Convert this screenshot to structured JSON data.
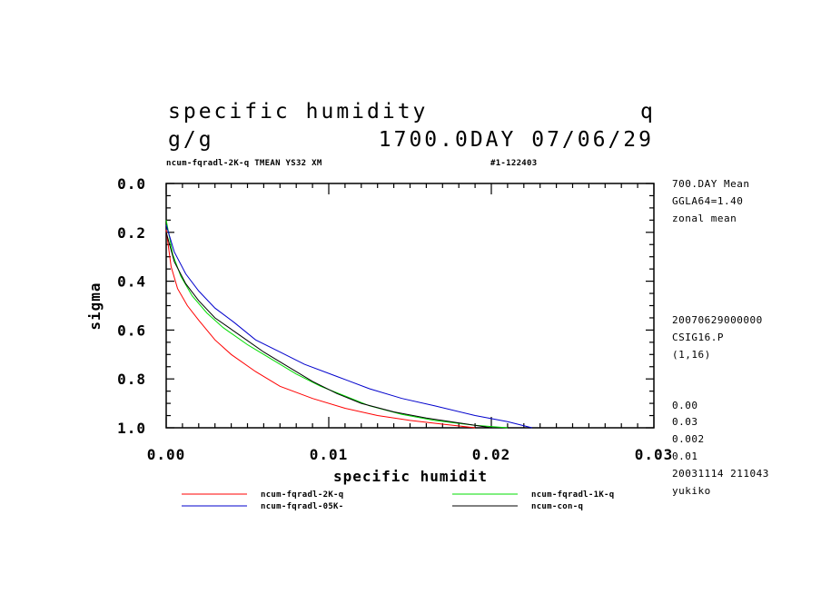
{
  "header": {
    "title": "specific humidity",
    "var_name": "q",
    "units": "g/g",
    "time": "1700.0DAY 07/06/29",
    "subtitle": "ncum-fqradl-2K-q TMEAN YS32 XM",
    "run_id": "#1-122403"
  },
  "side_info": {
    "line1": "700.DAY Mean",
    "line2": "GGLA64=1.40",
    "line3": "zonal mean",
    "line4": "20070629000000",
    "line5": "CSIG16.P",
    "line6": "(1,16)",
    "line7": "0.00",
    "line8": "0.03",
    "line9": "0.002",
    "line10": "0.01",
    "line11": "20031114 211043",
    "line12": "yukiko"
  },
  "chart_data": {
    "type": "line",
    "title": "specific humidity",
    "xlabel": "specific humidit",
    "ylabel": "sigma",
    "xlim": [
      0.0,
      0.03
    ],
    "ylim": [
      0.0,
      1.0
    ],
    "y_inverted": true,
    "x_ticks": [
      "0.00",
      "0.01",
      "0.02",
      "0.03"
    ],
    "y_ticks": [
      "0.0",
      "0.2",
      "0.4",
      "0.6",
      "0.8",
      "1.0"
    ],
    "legend_position": "bottom",
    "series": [
      {
        "name": "ncum-fqradl-2K-q",
        "color": "#ff0000",
        "points": [
          [
            0.0,
            0.19
          ],
          [
            0.0003,
            0.34
          ],
          [
            0.0007,
            0.43
          ],
          [
            0.0013,
            0.5
          ],
          [
            0.002,
            0.56
          ],
          [
            0.003,
            0.64
          ],
          [
            0.004,
            0.7
          ],
          [
            0.0055,
            0.77
          ],
          [
            0.007,
            0.83
          ],
          [
            0.009,
            0.88
          ],
          [
            0.011,
            0.92
          ],
          [
            0.013,
            0.95
          ],
          [
            0.015,
            0.97
          ],
          [
            0.017,
            0.985
          ],
          [
            0.019,
            1.0
          ]
        ]
      },
      {
        "name": "ncum-fqradl-1K-q",
        "color": "#00dd00",
        "points": [
          [
            0.0,
            0.15
          ],
          [
            0.0004,
            0.29
          ],
          [
            0.0009,
            0.38
          ],
          [
            0.0016,
            0.46
          ],
          [
            0.0025,
            0.53
          ],
          [
            0.0035,
            0.59
          ],
          [
            0.005,
            0.66
          ],
          [
            0.0065,
            0.72
          ],
          [
            0.008,
            0.78
          ],
          [
            0.0095,
            0.83
          ],
          [
            0.011,
            0.87
          ],
          [
            0.0125,
            0.91
          ],
          [
            0.0145,
            0.945
          ],
          [
            0.0165,
            0.97
          ],
          [
            0.019,
            0.99
          ],
          [
            0.021,
            1.0
          ]
        ]
      },
      {
        "name": "ncum-fqradl-05K-",
        "color": "#0000cc",
        "points": [
          [
            0.0,
            0.17
          ],
          [
            0.0005,
            0.28
          ],
          [
            0.0012,
            0.37
          ],
          [
            0.002,
            0.44
          ],
          [
            0.003,
            0.51
          ],
          [
            0.0042,
            0.57
          ],
          [
            0.0055,
            0.64
          ],
          [
            0.007,
            0.69
          ],
          [
            0.0085,
            0.74
          ],
          [
            0.0105,
            0.79
          ],
          [
            0.0125,
            0.84
          ],
          [
            0.0145,
            0.88
          ],
          [
            0.0165,
            0.91
          ],
          [
            0.019,
            0.95
          ],
          [
            0.021,
            0.975
          ],
          [
            0.0225,
            1.0
          ]
        ]
      },
      {
        "name": "ncum-con-q",
        "color": "#000000",
        "points": [
          [
            0.0,
            0.2
          ],
          [
            0.0005,
            0.32
          ],
          [
            0.0012,
            0.41
          ],
          [
            0.002,
            0.48
          ],
          [
            0.003,
            0.55
          ],
          [
            0.0045,
            0.62
          ],
          [
            0.006,
            0.69
          ],
          [
            0.0075,
            0.75
          ],
          [
            0.009,
            0.81
          ],
          [
            0.0105,
            0.86
          ],
          [
            0.012,
            0.9
          ],
          [
            0.014,
            0.935
          ],
          [
            0.016,
            0.96
          ],
          [
            0.018,
            0.98
          ],
          [
            0.02,
            1.0
          ]
        ]
      }
    ]
  }
}
